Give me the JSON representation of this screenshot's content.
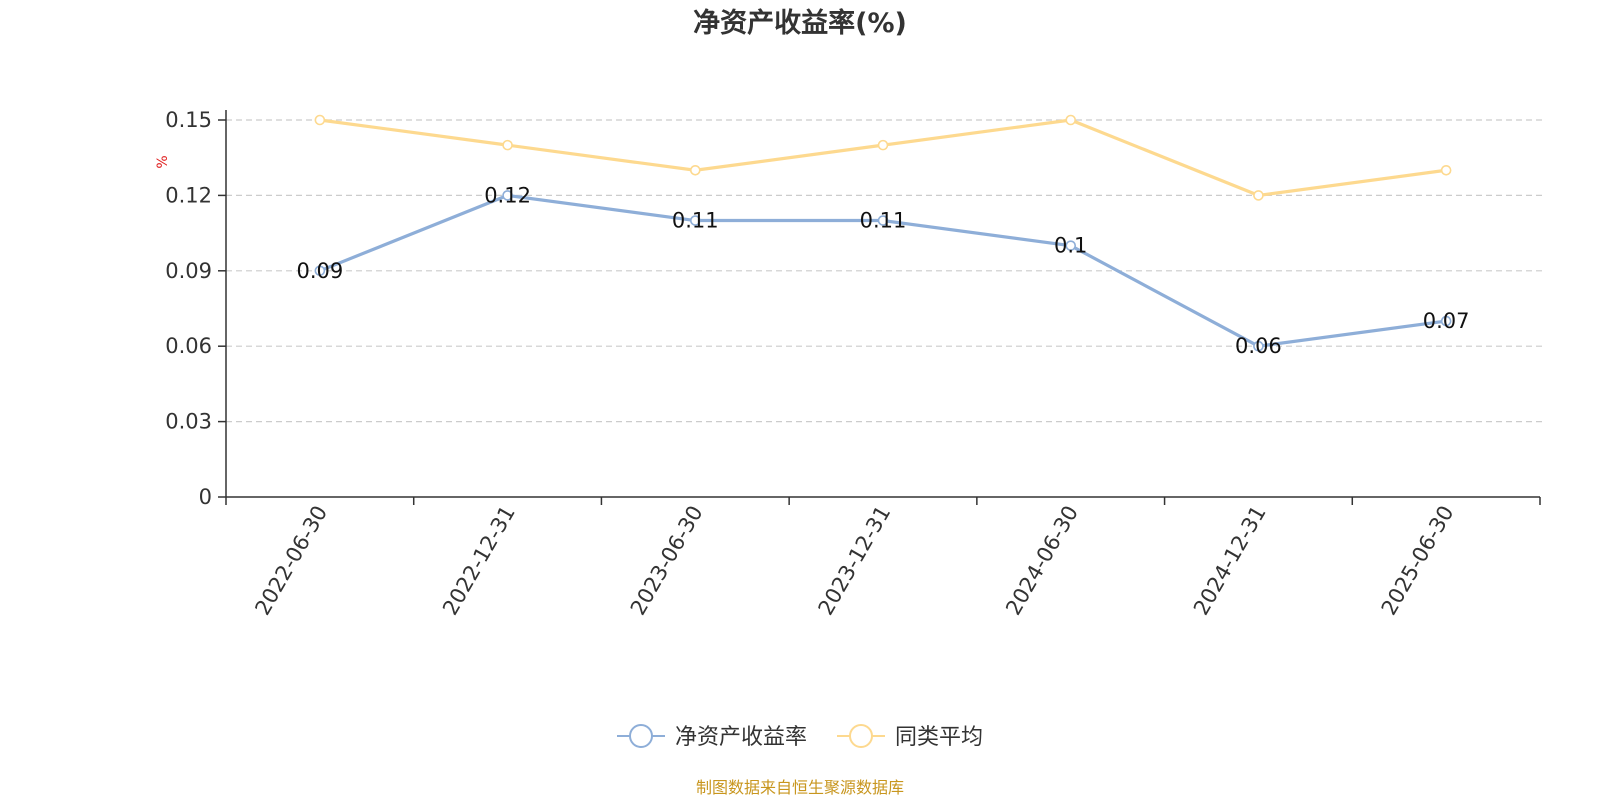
{
  "chart_data": {
    "type": "line",
    "title": "净资产收益率(%)",
    "ylabel": "%",
    "xlabel": "",
    "categories": [
      "2022-06-30",
      "2022-12-31",
      "2023-06-30",
      "2023-12-31",
      "2024-06-30",
      "2024-12-31",
      "2025-06-30"
    ],
    "y_ticks": [
      "0",
      "0.03",
      "0.06",
      "0.09",
      "0.12",
      "0.15"
    ],
    "ylim": [
      0,
      0.15
    ],
    "grid": true,
    "legend_position": "bottom",
    "series": [
      {
        "name": "净资产收益率",
        "values": [
          0.09,
          0.12,
          0.11,
          0.11,
          0.1,
          0.06,
          0.07
        ],
        "data_labels": [
          "0.09",
          "0.12",
          "0.11",
          "0.11",
          "0.1",
          "0.06",
          "0.07"
        ],
        "color": "#8eaed8"
      },
      {
        "name": "同类平均",
        "values": [
          0.15,
          0.14,
          0.13,
          0.14,
          0.15,
          0.12,
          0.13
        ],
        "color": "#fdd98f"
      }
    ]
  },
  "source_text": "制图数据来自恒生聚源数据库",
  "colors": {
    "axis": "#333333",
    "grid": "#cccccc",
    "source": "#c8961e",
    "unit": "#e02020"
  }
}
